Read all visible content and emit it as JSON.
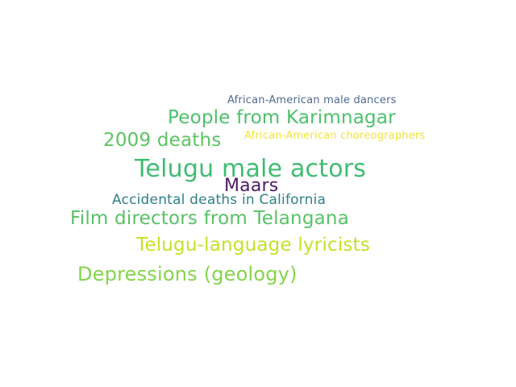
{
  "words": [
    {
      "text": "African-American male dancers",
      "color": "#4f6a8f"
    },
    {
      "text": "People from Karimnagar",
      "color": "#4dc06a"
    },
    {
      "text": "African-American choreographers",
      "color": "#f2e33a"
    },
    {
      "text": "2009 deaths",
      "color": "#5cc463"
    },
    {
      "text": "Telugu male actors",
      "color": "#3fbc72"
    },
    {
      "text": "Maars",
      "color": "#4a1a66"
    },
    {
      "text": "Accidental deaths in California",
      "color": "#2f8089"
    },
    {
      "text": "Film directors from Telangana",
      "color": "#58c265"
    },
    {
      "text": "Telugu-language lyricists",
      "color": "#c7e02a"
    },
    {
      "text": "Depressions (geology)",
      "color": "#86d44a"
    }
  ]
}
